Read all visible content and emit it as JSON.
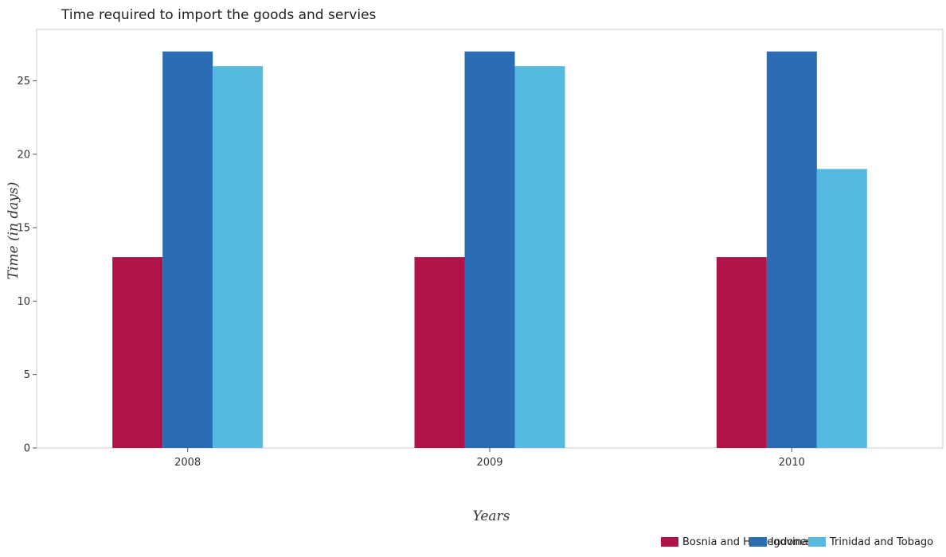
{
  "chart_data": {
    "type": "bar",
    "title": "Time required to import the goods and servies",
    "xlabel": "Years",
    "ylabel": "Time (in days)",
    "categories": [
      "2008",
      "2009",
      "2010"
    ],
    "series": [
      {
        "name": "Bosnia and Herzegovina",
        "color": "#b0124a",
        "values": [
          13,
          13,
          13
        ]
      },
      {
        "name": "Indonesia",
        "color": "#2a6db5",
        "values": [
          27,
          27,
          27
        ]
      },
      {
        "name": "Trinidad and Tobago",
        "color": "#56b9e0",
        "values": [
          26,
          26,
          19
        ]
      }
    ],
    "ylim": [
      0,
      28.5
    ],
    "yticks": [
      0,
      5,
      10,
      15,
      20,
      25
    ],
    "ytick_labels": [
      "0",
      "5",
      "10",
      "15",
      "20",
      "25"
    ],
    "grid": false,
    "legend_position": "bottom-right"
  }
}
